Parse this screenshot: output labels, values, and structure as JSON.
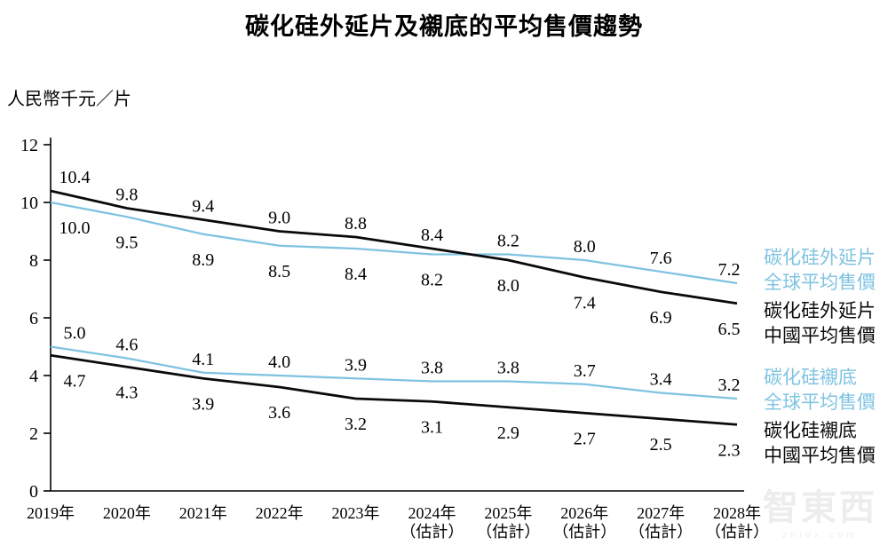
{
  "title": "碳化硅外延片及襯底的平均售價趨勢",
  "y_unit_label": "人民幣千元／片",
  "colors": {
    "global": "#7FC3E1",
    "china": "#0A0A0A",
    "axis": "#000000",
    "value_label": "#000000"
  },
  "chart_data": {
    "type": "line",
    "x_categories": [
      "2019年",
      "2020年",
      "2021年",
      "2022年",
      "2023年",
      "2024年",
      "2025年",
      "2026年",
      "2027年",
      "2028年"
    ],
    "x_estimate_note": "（估計）",
    "estimate_from_index": 5,
    "ylim": [
      0,
      12
    ],
    "y_ticks": [
      0,
      2,
      4,
      6,
      8,
      10,
      12
    ],
    "grid": false,
    "legend_position": "right",
    "series": [
      {
        "name": "碳化硅外延片全球平均售價",
        "color_key": "global",
        "values": [
          10.0,
          9.5,
          8.9,
          8.5,
          8.4,
          8.2,
          8.2,
          8.0,
          7.6,
          7.2
        ]
      },
      {
        "name": "碳化硅外延片中國平均售價",
        "color_key": "china",
        "values": [
          10.4,
          9.8,
          9.4,
          9.0,
          8.8,
          8.4,
          8.0,
          7.4,
          6.9,
          6.5
        ]
      },
      {
        "name": "碳化硅襯底全球平均售價",
        "color_key": "global",
        "values": [
          5.0,
          4.6,
          4.1,
          4.0,
          3.9,
          3.8,
          3.8,
          3.7,
          3.4,
          3.2
        ]
      },
      {
        "name": "碳化硅襯底中國平均售價",
        "color_key": "china",
        "values": [
          4.7,
          4.3,
          3.9,
          3.6,
          3.2,
          3.1,
          2.9,
          2.7,
          2.5,
          2.3
        ]
      }
    ],
    "label_pairs": [
      [
        0,
        1
      ],
      [
        2,
        3
      ]
    ]
  },
  "legend": [
    {
      "line1": "碳化硅外延片",
      "line2": "全球平均售價",
      "color_key": "global"
    },
    {
      "line1": "碳化硅外延片",
      "line2": "中國平均售價",
      "color_key": "china"
    },
    {
      "line1": "碳化硅襯底",
      "line2": "全球平均售價",
      "color_key": "global"
    },
    {
      "line1": "碳化硅襯底",
      "line2": "中國平均售價",
      "color_key": "china"
    }
  ],
  "watermark": {
    "main": "智東西",
    "sub": "zhidx.com"
  }
}
